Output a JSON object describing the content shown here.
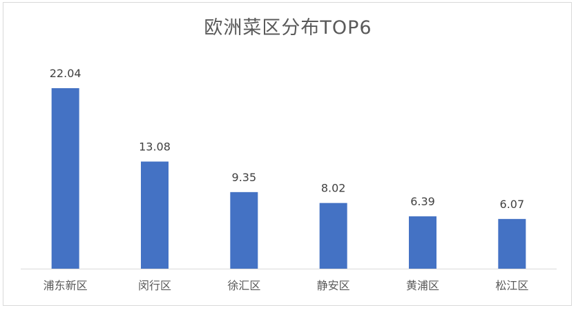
{
  "chart_data": {
    "type": "bar",
    "title": "欧洲菜区分布TOP6",
    "categories": [
      "浦东新区",
      "闵行区",
      "徐汇区",
      "静安区",
      "黄浦区",
      "松江区"
    ],
    "values": [
      22.04,
      13.08,
      9.35,
      8.02,
      6.39,
      6.07
    ],
    "value_labels": [
      "22.04",
      "13.08",
      "9.35",
      "8.02",
      "6.39",
      "6.07"
    ],
    "ylim": [
      0,
      25
    ],
    "grid": false,
    "legend": "none",
    "bar_color": "#4472C4"
  }
}
